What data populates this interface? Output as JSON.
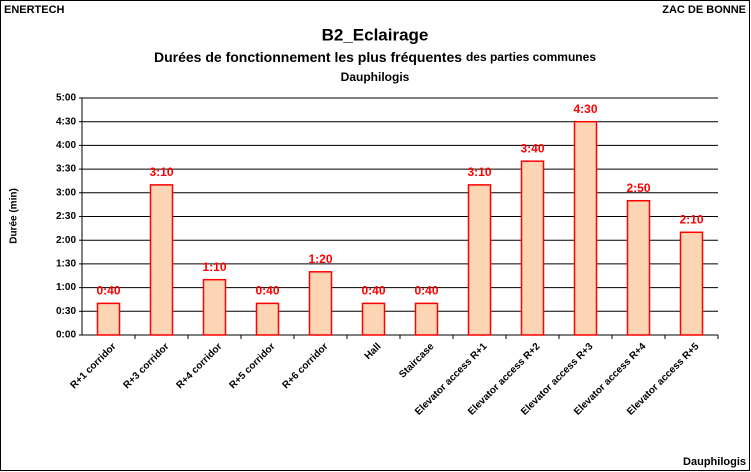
{
  "header": {
    "left": "ENERTECH",
    "right": "ZAC DE BONNE"
  },
  "footer": "Dauphilogis",
  "chart_data": {
    "type": "bar",
    "title": "B2_Eclairage",
    "title_line2_main": "Durées de fonctionnement les plus fréquentes",
    "title_line2_suffix": "des parties communes",
    "subtitle": "Dauphilogis",
    "ylabel": "Durée (min)",
    "categories": [
      "R+1 corridor",
      "R+3 corridor",
      "R+4 corridor",
      "R+5 corridor",
      "R+6 corridor",
      "Hall",
      "Staircase",
      "Elevator access R+1",
      "Elevator access R+2",
      "Elevator access R+3",
      "Elevator access R+4",
      "Elevator access R+5"
    ],
    "values": [
      0.667,
      3.167,
      1.167,
      0.667,
      1.333,
      0.667,
      0.667,
      3.167,
      3.667,
      4.5,
      2.833,
      2.167
    ],
    "value_labels": [
      "0:40",
      "3:10",
      "1:10",
      "0:40",
      "1:20",
      "0:40",
      "0:40",
      "3:10",
      "3:40",
      "4:30",
      "2:50",
      "2:10"
    ],
    "color": "#fcd5b4",
    "edge_color": "#ff0000",
    "label_color": "#ff0000",
    "ylim": [
      0,
      5
    ],
    "yticks": [
      {
        "value": 0,
        "label": "0:00"
      },
      {
        "value": 0.5,
        "label": "0:30"
      },
      {
        "value": 1,
        "label": "1:00"
      },
      {
        "value": 1.5,
        "label": "1:30"
      },
      {
        "value": 2,
        "label": "2:00"
      },
      {
        "value": 2.5,
        "label": "2:30"
      },
      {
        "value": 3,
        "label": "3:00"
      },
      {
        "value": 3.5,
        "label": "3:30"
      },
      {
        "value": 4,
        "label": "4:00"
      },
      {
        "value": 4.5,
        "label": "4:30"
      },
      {
        "value": 5,
        "label": "5:00"
      }
    ],
    "grid": true
  }
}
